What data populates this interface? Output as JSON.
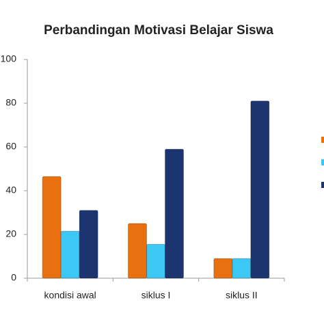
{
  "chart_data": {
    "type": "bar",
    "title": "Perbandingan Motivasi Belajar Siswa",
    "categories": [
      "kondisi awal",
      "siklus I",
      "siklus II"
    ],
    "series": [
      {
        "color": "#e8700f",
        "values": [
          46.5,
          25,
          9
        ]
      },
      {
        "color": "#3cc8f4",
        "values": [
          21.5,
          15.5,
          9
        ]
      },
      {
        "color": "#1c3470",
        "values": [
          31,
          59,
          81
        ]
      }
    ],
    "ylim": [
      0,
      100
    ],
    "yticks": [
      0,
      20,
      40,
      60,
      80,
      100
    ],
    "grid": false
  }
}
